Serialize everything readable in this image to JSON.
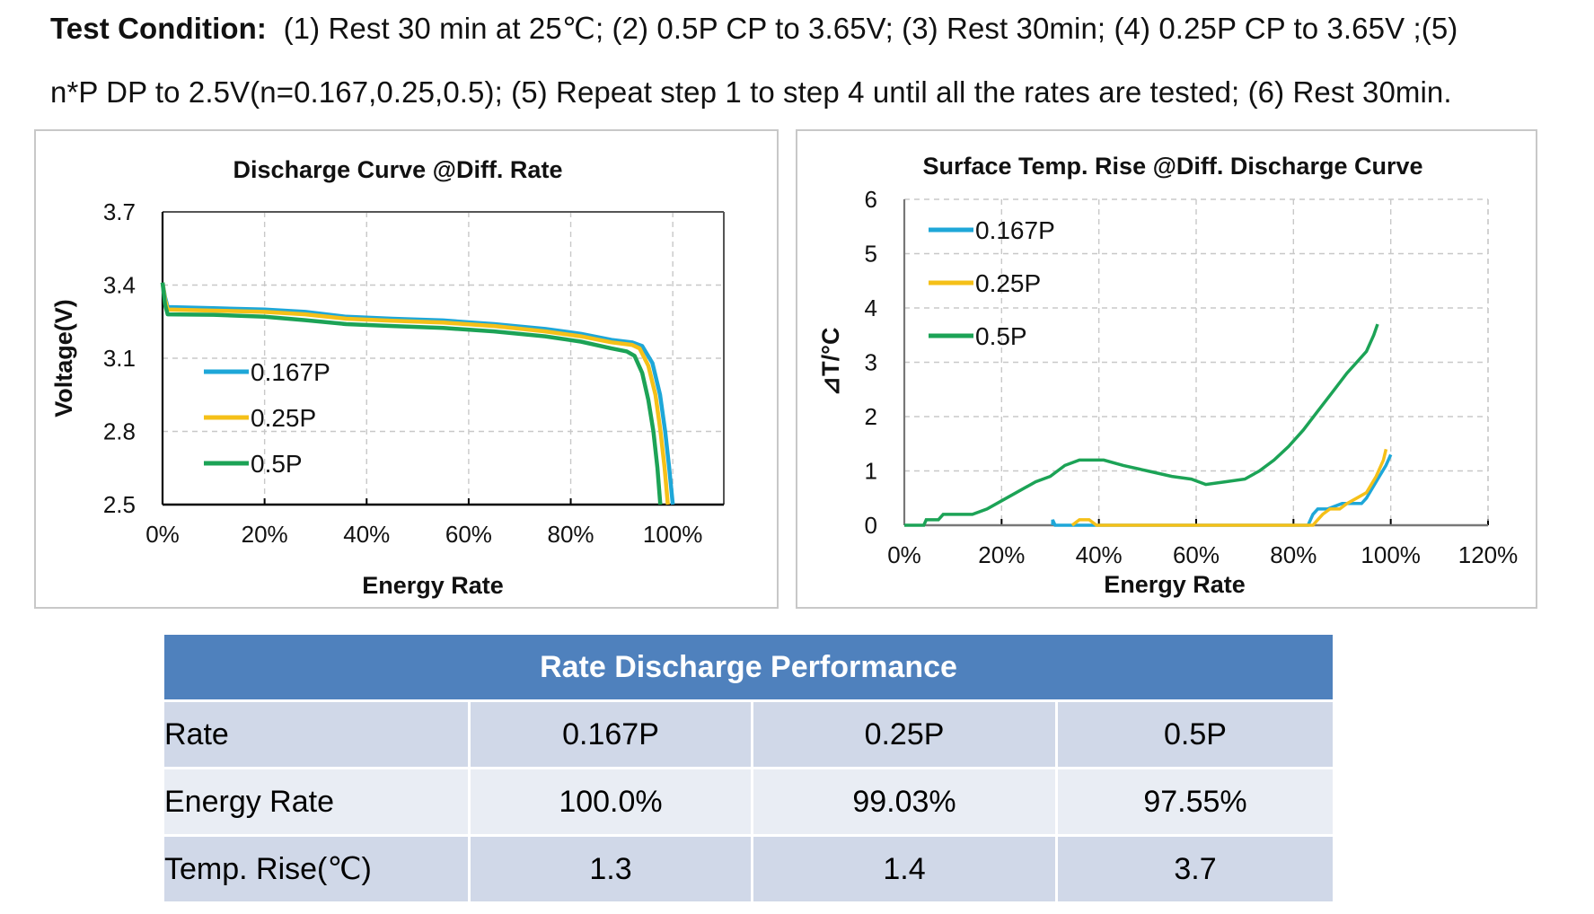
{
  "test_condition": {
    "label": "Test Condition:",
    "line1": "(1) Rest 30 min at 25℃; (2) 0.5P CP to 3.65V; (3) Rest 30min; (4) 0.25P CP to 3.65V ;(5)",
    "line2": "n*P DP to 2.5V(n=0.167,0.25,0.5); (5) Repeat step 1 to step 4 until all the rates are tested; (6) Rest 30min."
  },
  "colors": {
    "p0167": "#1ea7d8",
    "p025": "#f5c018",
    "p05": "#1ca356",
    "table_header": "#4f81bd",
    "table_row_odd": "#d0d8e8",
    "table_row_even": "#e9edf4"
  },
  "chart_data": [
    {
      "type": "line",
      "title": "Discharge Curve @Diff. Rate",
      "xlabel": "Energy Rate",
      "ylabel": "Voltage(V)",
      "xlim": [
        0,
        110
      ],
      "ylim": [
        2.5,
        3.7
      ],
      "x_ticks": [
        "0%",
        "20%",
        "40%",
        "60%",
        "80%",
        "100%"
      ],
      "x_tick_values": [
        0,
        20,
        40,
        60,
        80,
        100
      ],
      "y_ticks": [
        "2.5",
        "2.8",
        "3.1",
        "3.4",
        "3.7"
      ],
      "y_tick_values": [
        2.5,
        2.8,
        3.1,
        3.4,
        3.7
      ],
      "grid": true,
      "legend": "center-left",
      "series": [
        {
          "name": "0.167P",
          "color": "#1ea7d8",
          "points": [
            [
              0,
              3.41
            ],
            [
              0.5,
              3.35
            ],
            [
              1,
              3.31
            ],
            [
              10,
              3.305
            ],
            [
              20,
              3.3
            ],
            [
              28,
              3.29
            ],
            [
              36,
              3.27
            ],
            [
              45,
              3.262
            ],
            [
              55,
              3.255
            ],
            [
              65,
              3.24
            ],
            [
              75,
              3.22
            ],
            [
              82,
              3.2
            ],
            [
              88,
              3.175
            ],
            [
              92,
              3.165
            ],
            [
              94,
              3.15
            ],
            [
              96,
              3.08
            ],
            [
              97.5,
              2.95
            ],
            [
              98.5,
              2.8
            ],
            [
              99.3,
              2.65
            ],
            [
              100,
              2.5
            ]
          ]
        },
        {
          "name": "0.25P",
          "color": "#f5c018",
          "points": [
            [
              0,
              3.41
            ],
            [
              0.5,
              3.34
            ],
            [
              1,
              3.3
            ],
            [
              10,
              3.295
            ],
            [
              20,
              3.29
            ],
            [
              28,
              3.28
            ],
            [
              36,
              3.262
            ],
            [
              45,
              3.254
            ],
            [
              55,
              3.246
            ],
            [
              65,
              3.232
            ],
            [
              75,
              3.21
            ],
            [
              82,
              3.19
            ],
            [
              88,
              3.165
            ],
            [
              92,
              3.155
            ],
            [
              93.5,
              3.14
            ],
            [
              95.2,
              3.07
            ],
            [
              96.6,
              2.95
            ],
            [
              97.6,
              2.8
            ],
            [
              98.4,
              2.65
            ],
            [
              99.03,
              2.5
            ]
          ]
        },
        {
          "name": "0.5P",
          "color": "#1ca356",
          "points": [
            [
              0,
              3.41
            ],
            [
              0.5,
              3.32
            ],
            [
              1,
              3.28
            ],
            [
              10,
              3.278
            ],
            [
              20,
              3.27
            ],
            [
              28,
              3.256
            ],
            [
              36,
              3.24
            ],
            [
              45,
              3.232
            ],
            [
              55,
              3.224
            ],
            [
              65,
              3.21
            ],
            [
              75,
              3.19
            ],
            [
              82,
              3.168
            ],
            [
              88,
              3.14
            ],
            [
              91,
              3.128
            ],
            [
              92.5,
              3.11
            ],
            [
              94,
              3.04
            ],
            [
              95.2,
              2.93
            ],
            [
              96.2,
              2.8
            ],
            [
              97,
              2.65
            ],
            [
              97.55,
              2.5
            ]
          ]
        }
      ]
    },
    {
      "type": "line",
      "title": "Surface Temp. Rise @Diff. Discharge Curve",
      "xlabel": "Energy Rate",
      "ylabel": "⊿T/°C",
      "xlim": [
        0,
        120
      ],
      "ylim": [
        0,
        6
      ],
      "x_ticks": [
        "0%",
        "20%",
        "40%",
        "60%",
        "80%",
        "100%",
        "120%"
      ],
      "x_tick_values": [
        0,
        20,
        40,
        60,
        80,
        100,
        120
      ],
      "y_ticks": [
        "0",
        "1",
        "2",
        "3",
        "4",
        "5",
        "6"
      ],
      "y_tick_values": [
        0,
        1,
        2,
        3,
        4,
        5,
        6
      ],
      "grid": true,
      "legend": "top-left",
      "series": [
        {
          "name": "0.167P",
          "color": "#1ea7d8",
          "points": [
            [
              30.5,
              0
            ],
            [
              30.5,
              0.1
            ],
            [
              31,
              0
            ],
            [
              34,
              0
            ],
            [
              83,
              0
            ],
            [
              84,
              0.2
            ],
            [
              85,
              0.3
            ],
            [
              87,
              0.3
            ],
            [
              90,
              0.4
            ],
            [
              94,
              0.4
            ],
            [
              95,
              0.5
            ],
            [
              97,
              0.8
            ],
            [
              99,
              1.1
            ],
            [
              100,
              1.3
            ]
          ]
        },
        {
          "name": "0.25P",
          "color": "#f5c018",
          "points": [
            [
              34.5,
              0
            ],
            [
              36,
              0.1
            ],
            [
              38,
              0.1
            ],
            [
              39.5,
              0
            ],
            [
              84,
              0
            ],
            [
              85,
              0.1
            ],
            [
              86,
              0.2
            ],
            [
              87.5,
              0.3
            ],
            [
              89.5,
              0.3
            ],
            [
              91,
              0.4
            ],
            [
              93,
              0.5
            ],
            [
              95,
              0.6
            ],
            [
              97,
              0.9
            ],
            [
              98.5,
              1.2
            ],
            [
              99.03,
              1.4
            ]
          ]
        },
        {
          "name": "0.5P",
          "color": "#1ca356",
          "points": [
            [
              0,
              0
            ],
            [
              4,
              0
            ],
            [
              4.5,
              0.1
            ],
            [
              7,
              0.1
            ],
            [
              8,
              0.2
            ],
            [
              14,
              0.2
            ],
            [
              17,
              0.3
            ],
            [
              20,
              0.45
            ],
            [
              23,
              0.6
            ],
            [
              27,
              0.8
            ],
            [
              30,
              0.9
            ],
            [
              33,
              1.1
            ],
            [
              36,
              1.2
            ],
            [
              41,
              1.2
            ],
            [
              45,
              1.1
            ],
            [
              50,
              1.0
            ],
            [
              55,
              0.9
            ],
            [
              59,
              0.85
            ],
            [
              62,
              0.75
            ],
            [
              66,
              0.8
            ],
            [
              70,
              0.85
            ],
            [
              73,
              1.0
            ],
            [
              76,
              1.2
            ],
            [
              79,
              1.45
            ],
            [
              82,
              1.75
            ],
            [
              85,
              2.1
            ],
            [
              88,
              2.45
            ],
            [
              91,
              2.8
            ],
            [
              93,
              3.0
            ],
            [
              95,
              3.2
            ],
            [
              96.5,
              3.5
            ],
            [
              97.3,
              3.7
            ]
          ]
        }
      ]
    }
  ],
  "table": {
    "title": "Rate Discharge Performance",
    "rows": [
      {
        "label": "Rate",
        "values": [
          "0.167P",
          "0.25P",
          "0.5P"
        ]
      },
      {
        "label": "Energy Rate",
        "values": [
          "100.0%",
          "99.03%",
          "97.55%"
        ]
      },
      {
        "label": "Temp. Rise(℃)",
        "values": [
          "1.3",
          "1.4",
          "3.7"
        ]
      }
    ]
  }
}
